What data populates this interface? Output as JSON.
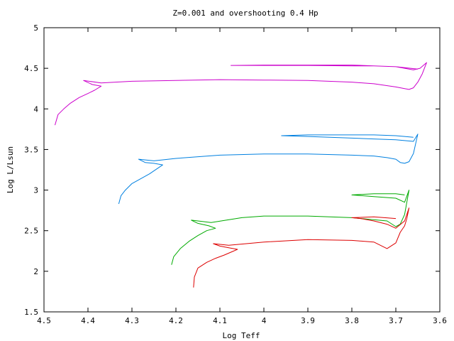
{
  "chart_data": {
    "type": "line",
    "title": "Z=0.001 and overshooting 0.4 Hp",
    "xlabel": "Log Teff",
    "ylabel": "Log L/Lsun",
    "xlim": [
      4.5,
      3.6
    ],
    "ylim": [
      1.5,
      5
    ],
    "x_reversed": true,
    "grid": false,
    "legend": "none",
    "xticks": [
      "4.5",
      "4.4",
      "4.3",
      "4.2",
      "4.1",
      "4",
      "3.9",
      "3.8",
      "3.7",
      "3.6"
    ],
    "yticks": [
      "1.5",
      "2",
      "2.5",
      "3",
      "3.5",
      "4",
      "4.5",
      "5"
    ],
    "series": [
      {
        "color": "#cc00cc",
        "x": [
          4.475,
          4.468,
          4.455,
          4.44,
          4.42,
          4.4,
          4.385,
          4.37,
          4.39,
          4.41,
          4.37,
          4.3,
          4.2,
          4.1,
          4.0,
          3.9,
          3.8,
          3.75,
          3.7,
          3.68,
          3.67,
          3.66,
          3.65,
          3.64,
          3.63,
          3.645,
          3.66,
          3.7,
          3.75,
          3.8,
          3.9,
          4.0,
          4.075,
          4.0,
          3.9,
          3.8,
          3.75,
          3.7,
          3.65
        ],
        "y": [
          3.8,
          3.93,
          4.0,
          4.07,
          4.14,
          4.19,
          4.23,
          4.28,
          4.3,
          4.35,
          4.32,
          4.34,
          4.35,
          4.36,
          4.355,
          4.35,
          4.33,
          4.31,
          4.27,
          4.25,
          4.24,
          4.26,
          4.33,
          4.43,
          4.57,
          4.5,
          4.48,
          4.52,
          4.53,
          4.53,
          4.535,
          4.535,
          4.535,
          4.54,
          4.54,
          4.54,
          4.53,
          4.52,
          4.49
        ]
      },
      {
        "color": "#0080e0",
        "x": [
          4.33,
          4.325,
          4.315,
          4.3,
          4.28,
          4.26,
          4.23,
          4.25,
          4.27,
          4.285,
          4.25,
          4.2,
          4.1,
          4.0,
          3.9,
          3.8,
          3.75,
          3.72,
          3.7,
          3.69,
          3.68,
          3.67,
          3.66,
          3.65,
          3.66,
          3.7,
          3.75,
          3.8,
          3.9,
          3.96,
          3.9,
          3.8,
          3.75,
          3.7,
          3.66
        ],
        "y": [
          2.83,
          2.93,
          3.0,
          3.08,
          3.14,
          3.2,
          3.31,
          3.33,
          3.34,
          3.38,
          3.36,
          3.39,
          3.43,
          3.445,
          3.445,
          3.43,
          3.42,
          3.4,
          3.38,
          3.34,
          3.33,
          3.35,
          3.45,
          3.69,
          3.6,
          3.62,
          3.63,
          3.64,
          3.66,
          3.67,
          3.68,
          3.68,
          3.68,
          3.67,
          3.65
        ]
      },
      {
        "color": "#00aa00",
        "x": [
          4.21,
          4.205,
          4.19,
          4.17,
          4.15,
          4.13,
          4.11,
          4.125,
          4.15,
          4.165,
          4.12,
          4.05,
          4.0,
          3.9,
          3.8,
          3.72,
          3.7,
          3.69,
          3.68,
          3.675,
          3.67,
          3.68,
          3.7,
          3.75,
          3.8,
          3.75,
          3.7,
          3.68
        ],
        "y": [
          2.08,
          2.18,
          2.28,
          2.37,
          2.44,
          2.5,
          2.53,
          2.56,
          2.59,
          2.63,
          2.6,
          2.66,
          2.68,
          2.68,
          2.66,
          2.62,
          2.55,
          2.58,
          2.7,
          2.85,
          3.0,
          2.85,
          2.9,
          2.92,
          2.94,
          2.955,
          2.955,
          2.94
        ]
      },
      {
        "color": "#dd0000",
        "x": [
          4.16,
          4.158,
          4.15,
          4.13,
          4.11,
          4.09,
          4.06,
          4.08,
          4.1,
          4.115,
          4.08,
          4.0,
          3.9,
          3.8,
          3.75,
          3.72,
          3.7,
          3.69,
          3.68,
          3.675,
          3.67,
          3.68,
          3.7,
          3.72,
          3.75,
          3.78,
          3.8,
          3.75,
          3.7
        ],
        "y": [
          1.8,
          1.93,
          2.04,
          2.11,
          2.16,
          2.2,
          2.27,
          2.29,
          2.31,
          2.34,
          2.32,
          2.36,
          2.39,
          2.38,
          2.36,
          2.28,
          2.35,
          2.48,
          2.56,
          2.65,
          2.78,
          2.62,
          2.53,
          2.58,
          2.62,
          2.65,
          2.66,
          2.67,
          2.65
        ]
      }
    ]
  }
}
